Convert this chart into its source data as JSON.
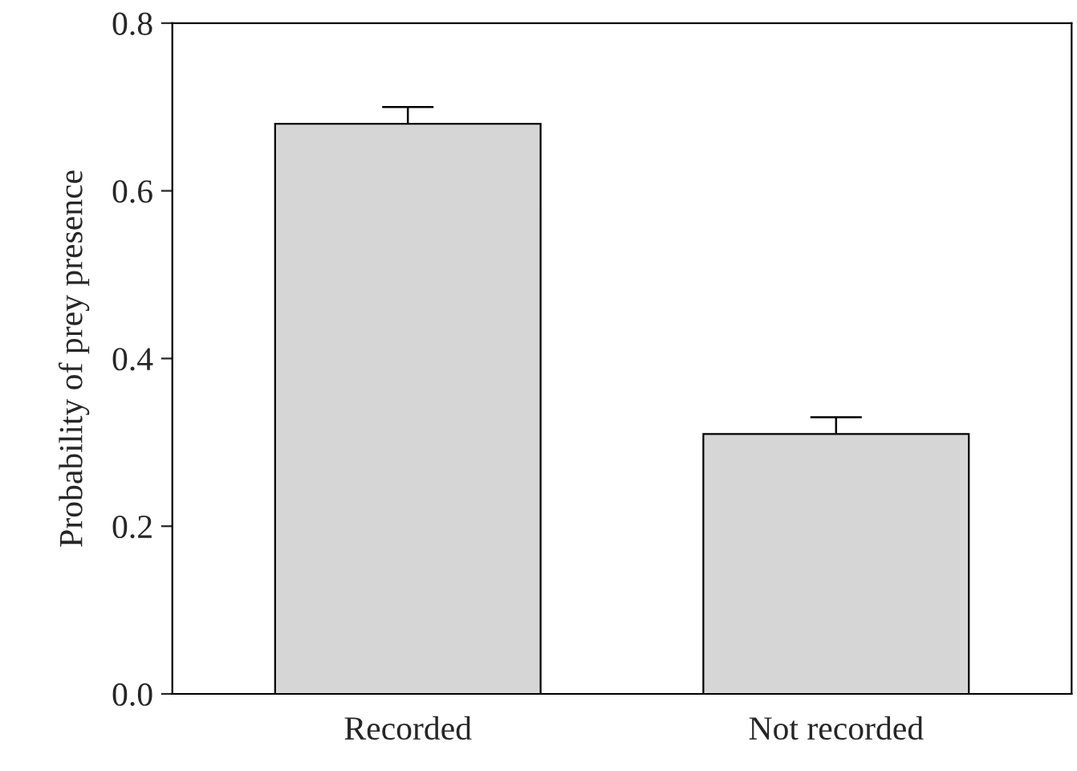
{
  "chart_data": {
    "type": "bar",
    "ylabel": "Probability of prey presence",
    "categories": [
      "Recorded",
      "Not recorded"
    ],
    "values": [
      0.68,
      0.31
    ],
    "errors": [
      [
        0.68,
        0.7
      ],
      [
        0.31,
        0.33
      ]
    ],
    "color": "#d6d6d6",
    "ylim": [
      0.0,
      0.8
    ],
    "yticks": [
      {
        "value": 0,
        "label": "0.0"
      },
      0.2,
      0.4,
      0.6,
      {
        "value": 0.8,
        "label": "0.8"
      }
    ],
    "grid": false
  }
}
